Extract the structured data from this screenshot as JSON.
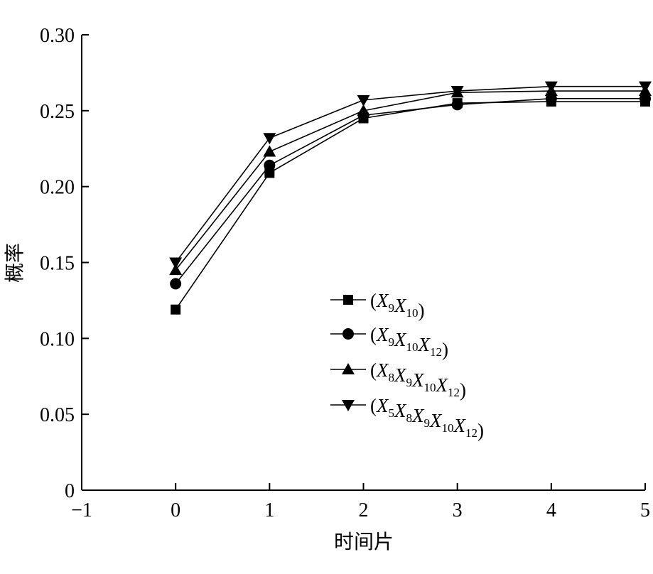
{
  "chart_data": {
    "type": "line",
    "title": "",
    "xlabel": "时间片",
    "ylabel": "概率",
    "xlim": [
      -1,
      5
    ],
    "ylim": [
      0,
      0.3
    ],
    "x": [
      0,
      1,
      2,
      3,
      4,
      5
    ],
    "xticks": [
      "−1",
      "0",
      "1",
      "2",
      "3",
      "4",
      "5"
    ],
    "yticks": [
      "0",
      "0.05",
      "0.10",
      "0.15",
      "0.20",
      "0.25",
      "0.30"
    ],
    "grid": false,
    "legend_position": "center-right",
    "series": [
      {
        "name": "(X9X10)",
        "label_parts": [
          [
            "(",
            ""
          ],
          [
            "X",
            "9"
          ],
          [
            "X",
            "10"
          ],
          [
            ")",
            ""
          ]
        ],
        "marker": "square",
        "values": [
          0.119,
          0.209,
          0.245,
          0.255,
          0.256,
          0.256
        ]
      },
      {
        "name": "(X9X10X12)",
        "label_parts": [
          [
            "(",
            ""
          ],
          [
            "X",
            "9"
          ],
          [
            "X",
            "10"
          ],
          [
            "X",
            "12"
          ],
          [
            ")",
            ""
          ]
        ],
        "marker": "circle",
        "values": [
          0.136,
          0.214,
          0.247,
          0.254,
          0.258,
          0.258
        ]
      },
      {
        "name": "(X8X9X10X12)",
        "label_parts": [
          [
            "(",
            ""
          ],
          [
            "X",
            "8"
          ],
          [
            "X",
            "9"
          ],
          [
            "X",
            "10"
          ],
          [
            "X",
            "12"
          ],
          [
            ")",
            ""
          ]
        ],
        "marker": "triangle-up",
        "values": [
          0.145,
          0.223,
          0.25,
          0.262,
          0.263,
          0.263
        ]
      },
      {
        "name": "(X5X8X9X10X12)",
        "label_parts": [
          [
            "(",
            ""
          ],
          [
            "X",
            "5"
          ],
          [
            "X",
            "8"
          ],
          [
            "X",
            "9"
          ],
          [
            "X",
            "10"
          ],
          [
            "X",
            "12"
          ],
          [
            ")",
            ""
          ]
        ],
        "marker": "triangle-down",
        "values": [
          0.15,
          0.232,
          0.257,
          0.263,
          0.266,
          0.266
        ]
      }
    ]
  }
}
